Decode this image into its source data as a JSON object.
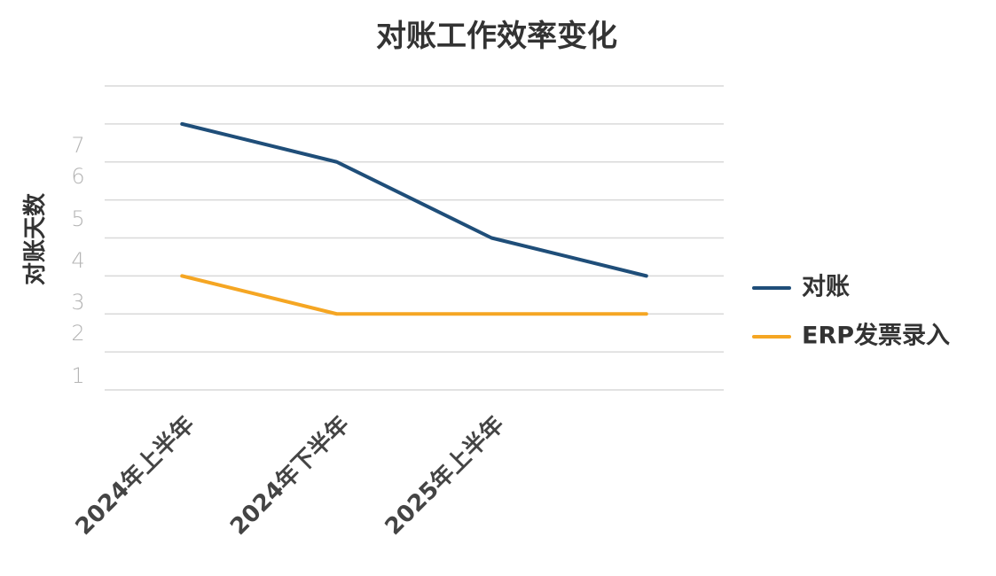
{
  "chart_data": {
    "type": "line",
    "title": "对账工作效率变化",
    "ylabel": "对账天数",
    "xlabel": "",
    "categories": [
      "2024年上半年",
      "2024年下半年",
      "2025年上半年",
      ""
    ],
    "yticks": [
      "1",
      "2",
      "3",
      "4",
      "5",
      "6",
      "7"
    ],
    "ylim": [
      0,
      8
    ],
    "grid": true,
    "legend_position": "right",
    "series": [
      {
        "name": "对账",
        "color": "#1f4e79",
        "values": [
          7,
          6,
          4,
          3
        ]
      },
      {
        "name": "ERP发票录入",
        "color": "#f5a623",
        "values": [
          3,
          2,
          2,
          2
        ]
      }
    ]
  }
}
